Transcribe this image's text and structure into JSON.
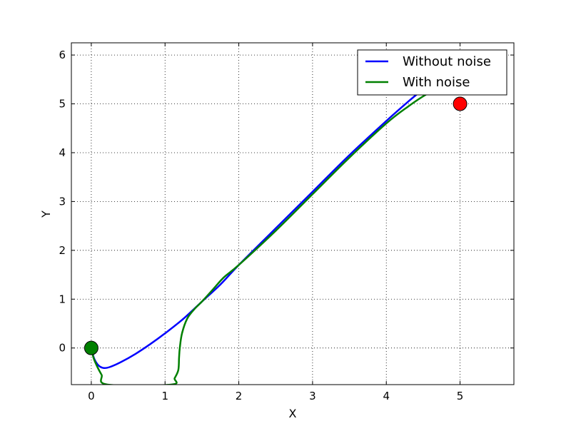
{
  "chart_data": {
    "type": "line",
    "title": "",
    "xlabel": "X",
    "ylabel": "Y",
    "xlim": [
      -0.27,
      5.73
    ],
    "ylim": [
      -0.75,
      6.25
    ],
    "xticks": [
      0,
      1,
      2,
      3,
      4,
      5
    ],
    "yticks": [
      0,
      1,
      2,
      3,
      4,
      5,
      6
    ],
    "xtick_labels": [
      "0",
      "1",
      "2",
      "3",
      "4",
      "5"
    ],
    "ytick_labels": [
      "0",
      "1",
      "2",
      "3",
      "4",
      "5",
      "6"
    ],
    "grid": true,
    "legend_position": "top-right",
    "series": [
      {
        "name": "Without noise",
        "color": "#0000ff",
        "x": [
          0.0,
          0.04,
          0.1,
          0.17,
          0.25,
          0.4,
          0.6,
          0.8,
          1.0,
          1.25,
          1.5,
          1.75,
          2.0,
          2.5,
          3.0,
          3.5,
          4.0,
          4.3,
          4.5
        ],
        "y": [
          0.0,
          -0.22,
          -0.36,
          -0.41,
          -0.39,
          -0.29,
          -0.12,
          0.08,
          0.3,
          0.6,
          0.95,
          1.3,
          1.7,
          2.45,
          3.2,
          3.95,
          4.65,
          5.05,
          5.3
        ]
      },
      {
        "name": "With noise",
        "color": "#008000",
        "x": [
          0.0,
          0.03,
          0.08,
          0.14,
          0.22,
          1.08,
          1.13,
          1.18,
          1.19,
          1.2,
          1.23,
          1.3,
          1.4,
          1.5,
          1.65,
          1.8,
          2.0,
          2.5,
          3.0,
          3.5,
          4.0,
          4.3,
          4.55,
          4.7
        ],
        "y": [
          0.0,
          -0.2,
          -0.38,
          -0.55,
          -0.75,
          -0.75,
          -0.62,
          -0.45,
          -0.2,
          0.0,
          0.3,
          0.6,
          0.8,
          0.95,
          1.2,
          1.45,
          1.7,
          2.4,
          3.15,
          3.9,
          4.6,
          4.95,
          5.2,
          5.3
        ]
      }
    ],
    "markers": [
      {
        "x": 0,
        "y": 0,
        "color": "#008000"
      },
      {
        "x": 5,
        "y": 5,
        "color": "#ff0000"
      }
    ]
  }
}
